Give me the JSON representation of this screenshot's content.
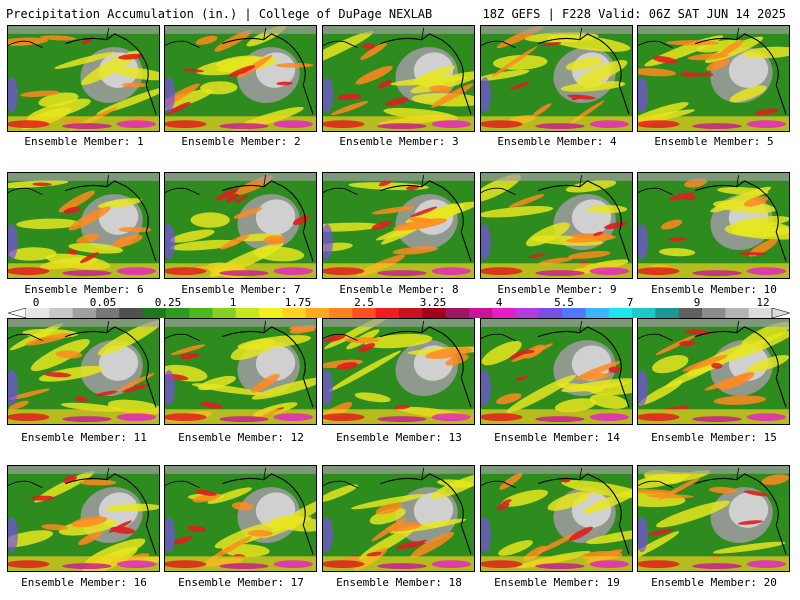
{
  "header": {
    "title": "Precipitation Accumulation (in.) | College of DuPage NEXLAB",
    "run_info": "18Z GEFS | F228 Valid: 06Z SAT JUN 14 2025"
  },
  "panel_label_prefix": "Ensemble Member: ",
  "members": [
    "1",
    "2",
    "3",
    "4",
    "5",
    "6",
    "7",
    "8",
    "9",
    "10",
    "11",
    "12",
    "13",
    "14",
    "15",
    "16",
    "17",
    "18",
    "19",
    "20"
  ],
  "colorbar": {
    "tick_labels": [
      "0",
      "0.05",
      "0.25",
      "1",
      "1.75",
      "2.5",
      "3.25",
      "4",
      "5.5",
      "7",
      "9",
      "12"
    ],
    "colors": [
      "#e6e6e6",
      "#c8c8c8",
      "#a0a0a0",
      "#787878",
      "#505050",
      "#1e7a1e",
      "#2e9a1e",
      "#4cb81e",
      "#86d020",
      "#c8e61e",
      "#f0f01e",
      "#ffd21e",
      "#ffaa1e",
      "#ff821e",
      "#ff501e",
      "#f01e1e",
      "#c8141e",
      "#a0001e",
      "#a01464",
      "#c81496",
      "#e61ec8",
      "#b43cdc",
      "#7850e6",
      "#5078ff",
      "#3cb4ff",
      "#1ee6f0",
      "#1ec8c8",
      "#1e9696",
      "#606060",
      "#8c8c8c",
      "#b4b4b4",
      "#dcdcdc"
    ]
  }
}
